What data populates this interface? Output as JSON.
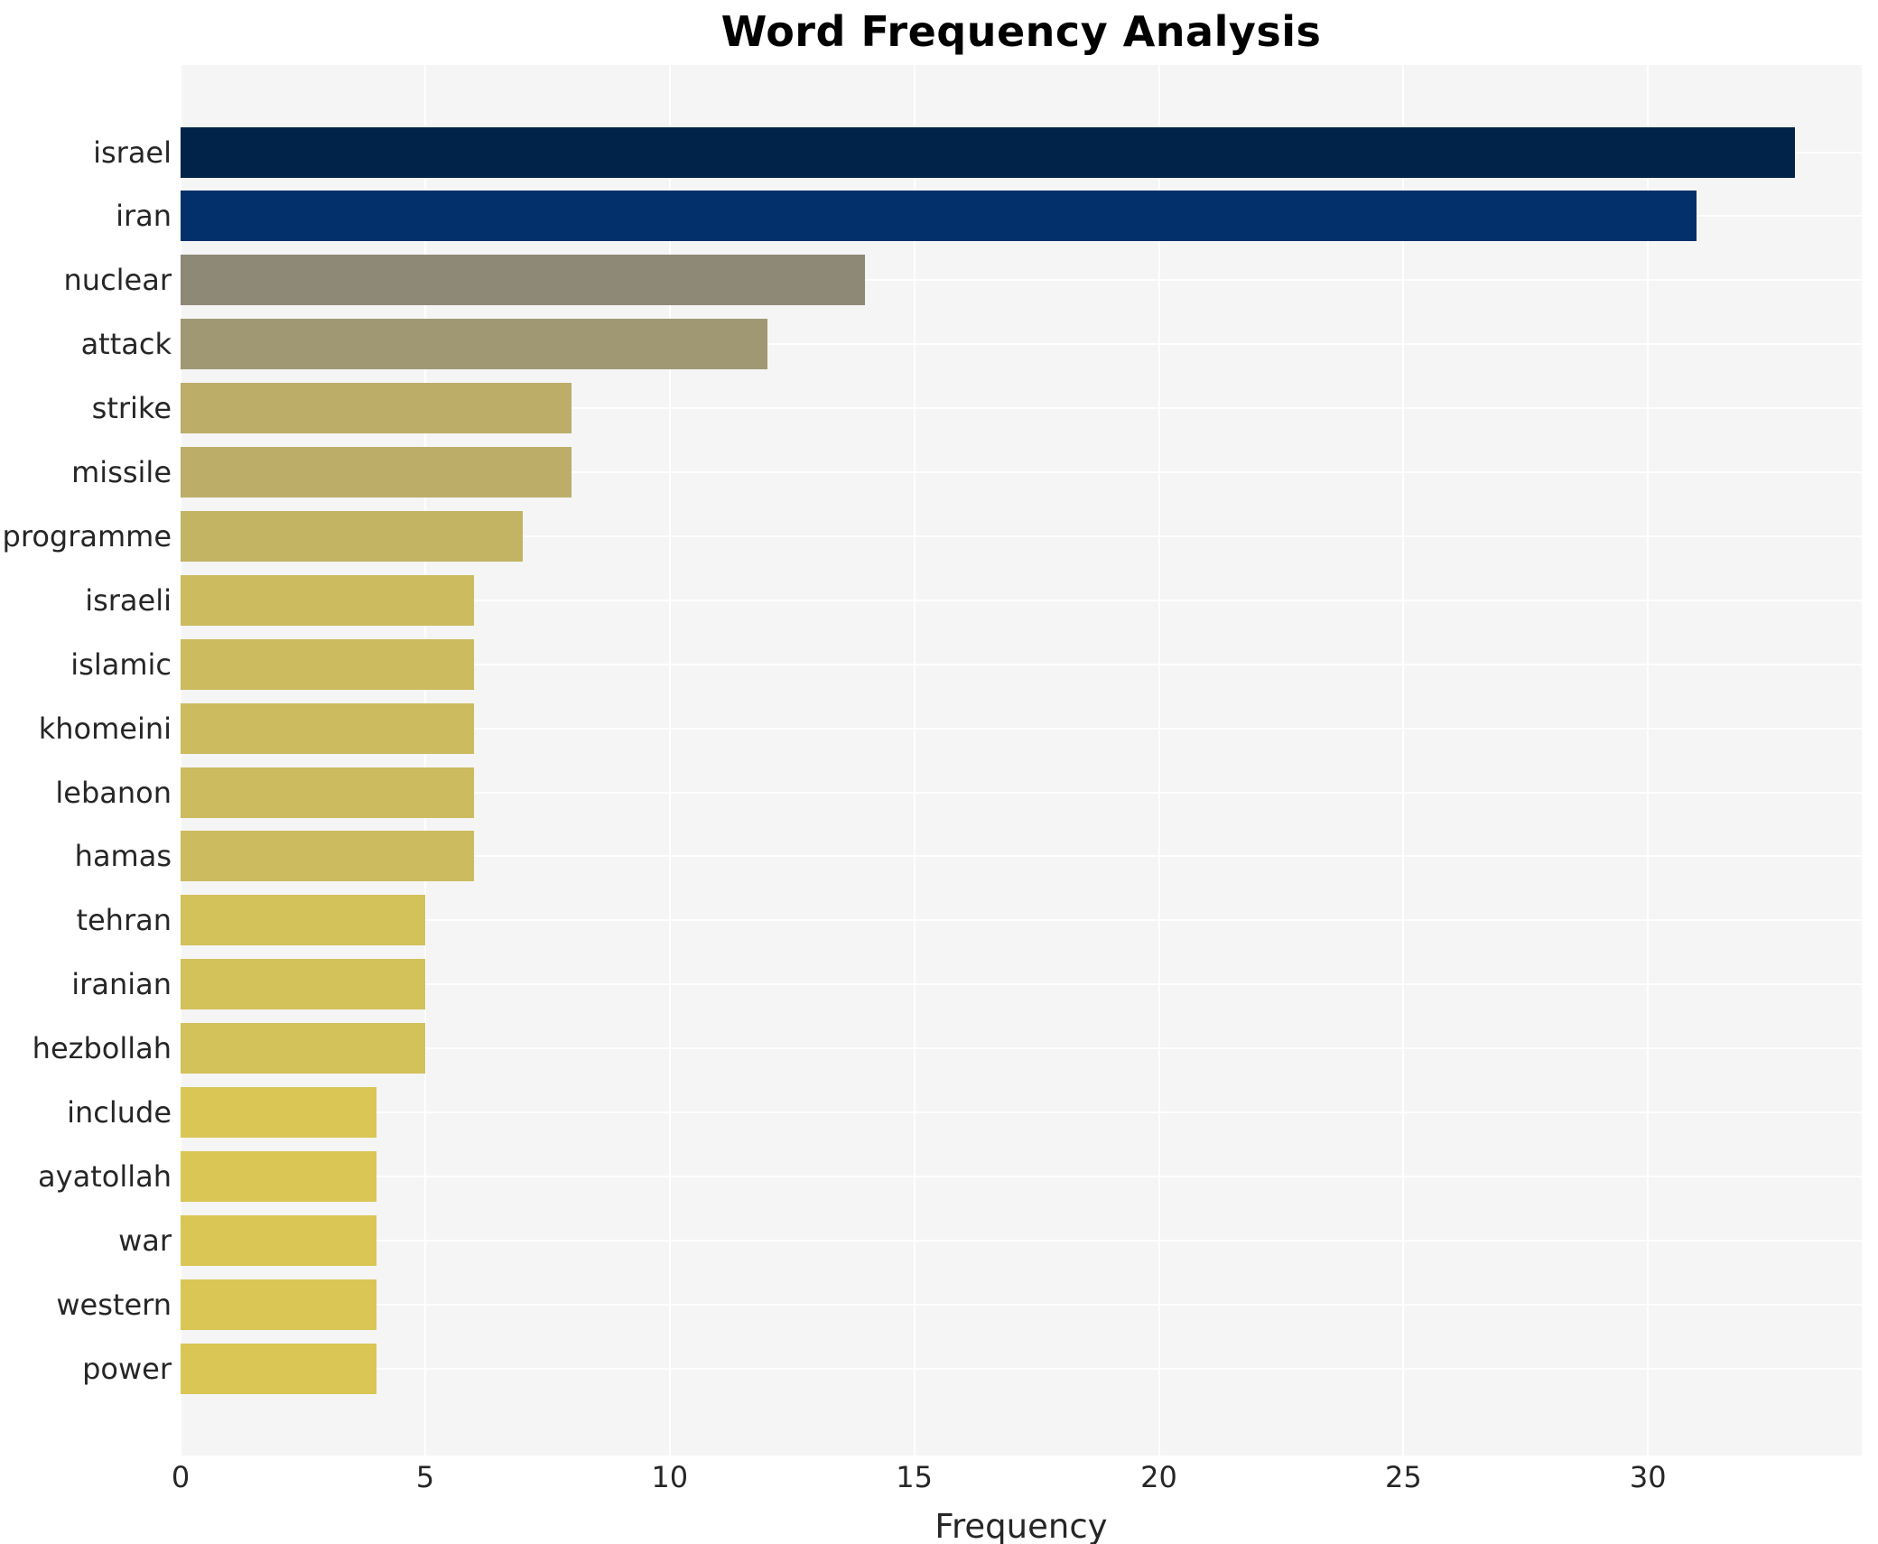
{
  "chart_data": {
    "type": "bar",
    "orientation": "horizontal",
    "title": "Word Frequency Analysis",
    "xlabel": "Frequency",
    "ylabel": "",
    "categories": [
      "israel",
      "iran",
      "nuclear",
      "attack",
      "strike",
      "missile",
      "programme",
      "israeli",
      "islamic",
      "khomeini",
      "lebanon",
      "hamas",
      "tehran",
      "iranian",
      "hezbollah",
      "include",
      "ayatollah",
      "war",
      "western",
      "power"
    ],
    "values": [
      33,
      31,
      14,
      12,
      8,
      8,
      7,
      6,
      6,
      6,
      6,
      6,
      5,
      5,
      5,
      4,
      4,
      4,
      4,
      4
    ],
    "bar_colors": [
      "#012249",
      "#03306a",
      "#8e8977",
      "#9f9873",
      "#bcae68",
      "#bcae68",
      "#c2b463",
      "#ccbb5f",
      "#ccbb5f",
      "#ccbb5f",
      "#ccbb5f",
      "#ccbb5f",
      "#d3c15a",
      "#d3c15a",
      "#d3c15a",
      "#d9c655",
      "#d9c655",
      "#d9c655",
      "#d9c655",
      "#d9c655"
    ],
    "xticks": [
      0,
      5,
      10,
      15,
      20,
      25,
      30
    ],
    "xlim": [
      0,
      34.37
    ],
    "grid": "on",
    "legend": "none",
    "plot_background": "#f5f5f6",
    "grid_color": "#ffffff",
    "text_color": "#262626",
    "title_color": "#000000"
  }
}
